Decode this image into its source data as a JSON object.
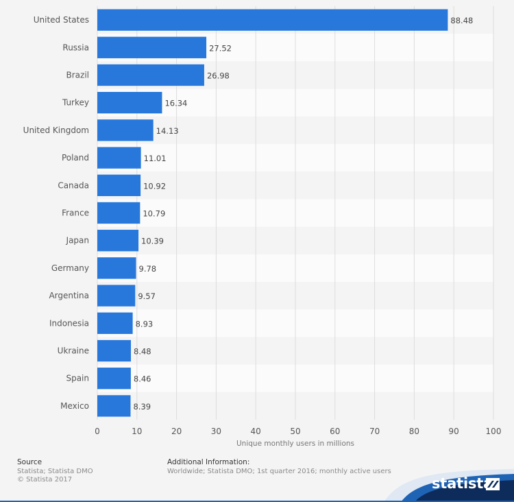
{
  "chart_data": {
    "type": "bar",
    "orientation": "horizontal",
    "categories": [
      "United States",
      "Russia",
      "Brazil",
      "Turkey",
      "United Kingdom",
      "Poland",
      "Canada",
      "France",
      "Japan",
      "Germany",
      "Argentina",
      "Indonesia",
      "Ukraine",
      "Spain",
      "Mexico"
    ],
    "values": [
      88.48,
      27.52,
      26.98,
      16.34,
      14.13,
      11.01,
      10.92,
      10.79,
      10.39,
      9.78,
      9.57,
      8.93,
      8.48,
      8.46,
      8.39
    ],
    "value_labels": [
      "88.48",
      "27.52",
      "26.98",
      "16.34",
      "14.13",
      "11.01",
      "10.92",
      "10.79",
      "10.39",
      "9.78",
      "9.57",
      "8.93",
      "8.48",
      "8.46",
      "8.39"
    ],
    "xlabel": "Unique monthly users in millions",
    "ylabel": "",
    "xlim": [
      0,
      100
    ],
    "xticks": [
      0,
      10,
      20,
      30,
      40,
      50,
      60,
      70,
      80,
      90,
      100
    ],
    "grid": "vertical",
    "legend": "none",
    "colors": {
      "bar": "#2878dc",
      "band_light": "#fbfbfb",
      "band_dark": "#f4f4f4",
      "grid": "#dcdcdc",
      "text": "#555555"
    }
  },
  "footer": {
    "source_title": "Source",
    "source_lines": [
      "Statista; Statista DMO",
      "© Statista 2017"
    ],
    "info_title": "Additional Information:",
    "info_text": "Worldwide; Statista DMO; 1st quarter 2016; monthly active users"
  },
  "brand": {
    "name": "statista",
    "colors": {
      "dark": "#0d2c5c",
      "mid": "#1f63b5",
      "light": "#dfe8f3"
    }
  }
}
